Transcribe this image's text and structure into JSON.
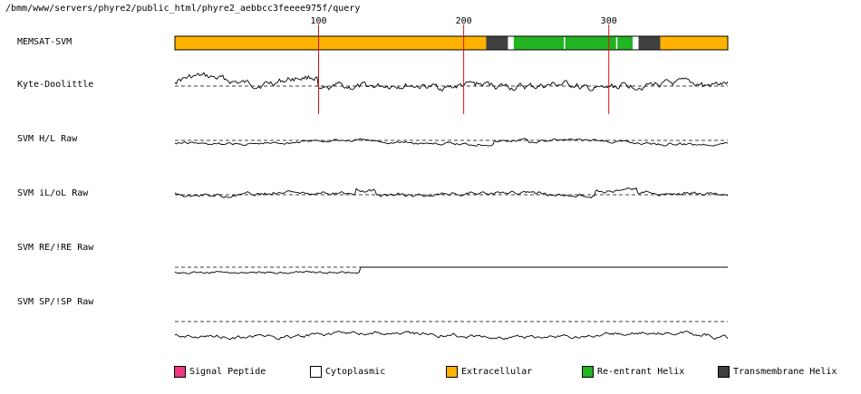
{
  "file_path": "/bmm/www/servers/phyre2/public_html/phyre2_aebbcc3feeee975f/query",
  "ruler_ticks": [
    100,
    200,
    300
  ],
  "sequence_length": 382,
  "tracks": [
    {
      "id": "memsat",
      "label": "MEMSAT-SVM"
    },
    {
      "id": "kd",
      "label": "Kyte-Doolittle"
    },
    {
      "id": "hl",
      "label": "SVM H/L Raw"
    },
    {
      "id": "ilol",
      "label": "SVM iL/oL Raw"
    },
    {
      "id": "reire",
      "label": "SVM RE/!RE Raw"
    },
    {
      "id": "spisp",
      "label": "SVM SP/!SP Raw"
    }
  ],
  "memsat_segments": [
    {
      "start": 1,
      "end": 215,
      "type": "Extracellular"
    },
    {
      "start": 216,
      "end": 230,
      "type": "Transmembrane Helix"
    },
    {
      "start": 231,
      "end": 234,
      "type": "Cytoplasmic"
    },
    {
      "start": 235,
      "end": 316,
      "type": "Re-entrant Helix"
    },
    {
      "start": 317,
      "end": 320,
      "type": "Cytoplasmic"
    },
    {
      "start": 321,
      "end": 335,
      "type": "Transmembrane Helix"
    },
    {
      "start": 336,
      "end": 382,
      "type": "Extracellular"
    }
  ],
  "legend": [
    {
      "label": "Signal Peptide",
      "color": "#f0367c"
    },
    {
      "label": "Cytoplasmic",
      "color": "#ffffff"
    },
    {
      "label": "Extracellular",
      "color": "#ffb300"
    },
    {
      "label": "Re-entrant Helix",
      "color": "#22b422"
    },
    {
      "label": "Transmembrane Helix",
      "color": "#404040"
    }
  ],
  "colors": {
    "ruler": "#e01010",
    "trace": "#000000"
  }
}
